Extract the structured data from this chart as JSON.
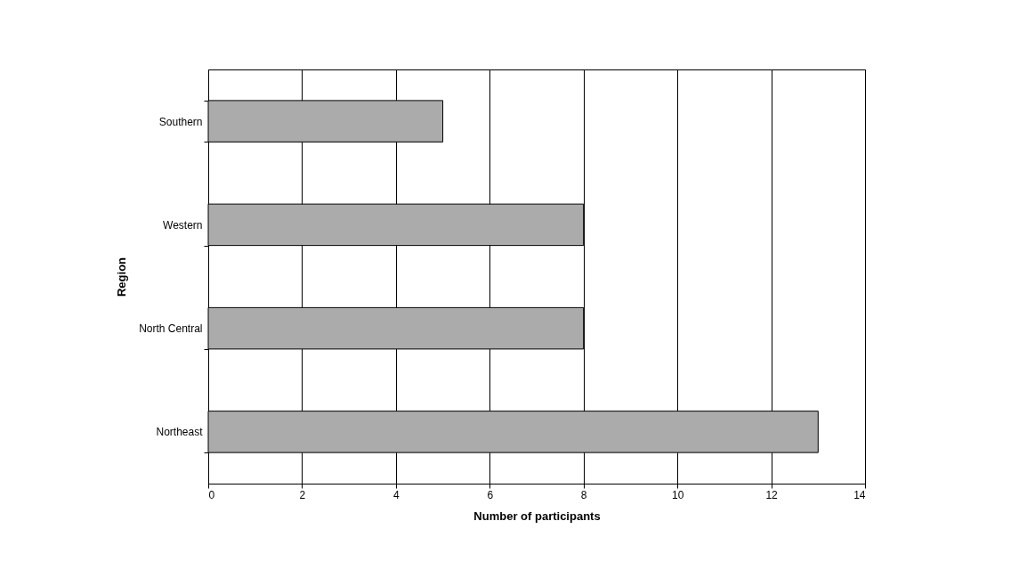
{
  "chart_data": {
    "type": "bar",
    "orientation": "horizontal",
    "xlabel": "Number of participants",
    "ylabel": "Region",
    "categories": [
      "Southern",
      "Western",
      "North Central",
      "Northeast"
    ],
    "values": [
      5,
      8,
      8,
      13
    ],
    "color": "#ababab",
    "xlim": [
      0,
      14
    ],
    "xticks": [
      0,
      2,
      4,
      6,
      8,
      10,
      12,
      14
    ],
    "grid": "x"
  }
}
